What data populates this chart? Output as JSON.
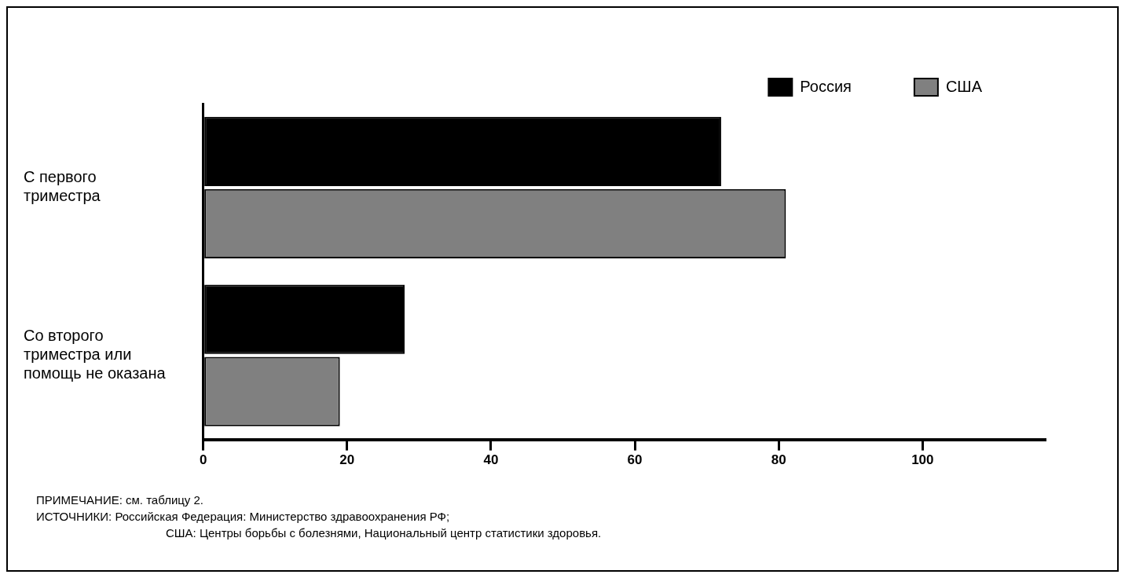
{
  "chart_data": {
    "type": "bar",
    "orientation": "horizontal",
    "categories": [
      "С первого триместра",
      "Со второго триместра или помощь не оказана"
    ],
    "series": [
      {
        "name": "Россия",
        "color": "#000000",
        "values": [
          72,
          28
        ]
      },
      {
        "name": "США",
        "color": "#808080",
        "values": [
          81,
          19
        ]
      }
    ],
    "xlim": [
      0,
      117
    ],
    "xticks": [
      0,
      20,
      40,
      60,
      80,
      100
    ],
    "grid": false,
    "legend": "top right",
    "annotations": [
      "ПРИМЕЧАНИЕ: см. таблицу 2.",
      "ИСТОЧНИКИ: Российская Федерация: Министерство здравоохранения РФ;",
      "США: Центры борьбы с болезнями, Национальный центр статистики здоровья."
    ]
  }
}
